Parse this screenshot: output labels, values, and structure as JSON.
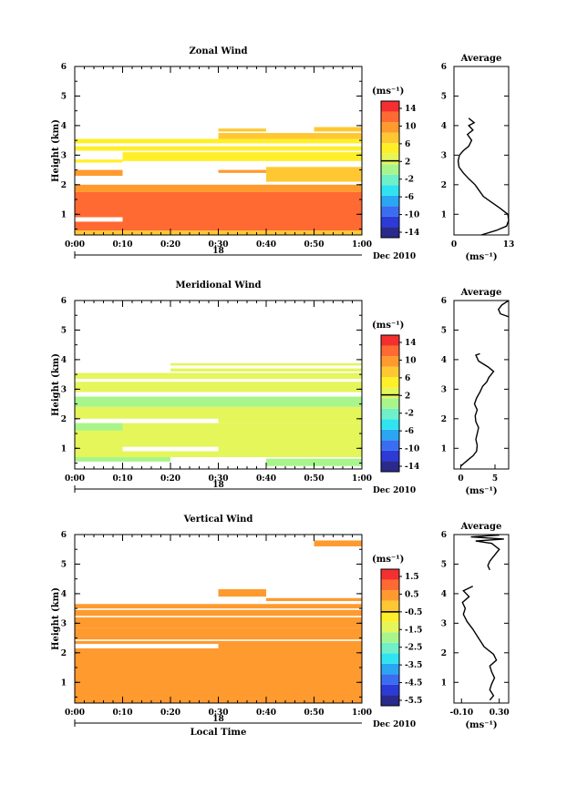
{
  "chart_data": [
    {
      "type": "heatmap",
      "title": "Zonal Wind",
      "xlabel": "",
      "ylabel": "Height (km)",
      "x_ticks": [
        "0:00",
        "0:10",
        "0:20",
        "0:30",
        "0:40",
        "0:50",
        "1:00"
      ],
      "y_ticks": [
        "1",
        "2",
        "3",
        "4",
        "5",
        "6"
      ],
      "ylim": [
        0.3,
        6.0
      ],
      "date_label": "18",
      "date_suffix": "Dec 2010",
      "colorbar": {
        "unit": "(ms⁻¹)",
        "ticks": [
          "14",
          "10",
          "6",
          "2",
          "-2",
          "-6",
          "-10",
          "-14"
        ],
        "range": [
          -16,
          16
        ],
        "marker": 2
      },
      "cells": [
        {
          "x0": 0,
          "x1": 60,
          "y0": 0.3,
          "y1": 0.45,
          "value": 8
        },
        {
          "x0": 0,
          "x1": 60,
          "y0": 0.45,
          "y1": 1.75,
          "value": 13
        },
        {
          "x0": 0,
          "x1": 10,
          "y0": 0.75,
          "y1": 0.9,
          "value": null
        },
        {
          "x0": 0,
          "x1": 60,
          "y0": 1.75,
          "y1": 2.0,
          "value": 9
        },
        {
          "x0": 0,
          "x1": 10,
          "y0": 2.3,
          "y1": 2.5,
          "value": 9
        },
        {
          "x0": 30,
          "x1": 40,
          "y0": 2.4,
          "y1": 2.5,
          "value": 11
        },
        {
          "x0": 40,
          "x1": 60,
          "y0": 2.1,
          "y1": 2.6,
          "value": 8
        },
        {
          "x0": 0,
          "x1": 10,
          "y0": 2.75,
          "y1": 2.85,
          "value": 6
        },
        {
          "x0": 10,
          "x1": 60,
          "y0": 2.8,
          "y1": 3.1,
          "value": 6
        },
        {
          "x0": 0,
          "x1": 60,
          "y0": 3.15,
          "y1": 3.3,
          "value": 5
        },
        {
          "x0": 0,
          "x1": 60,
          "y0": 3.4,
          "y1": 3.55,
          "value": 5
        },
        {
          "x0": 30,
          "x1": 60,
          "y0": 3.55,
          "y1": 3.75,
          "value": 7
        },
        {
          "x0": 30,
          "x1": 40,
          "y0": 3.8,
          "y1": 3.9,
          "value": 8
        },
        {
          "x0": 50,
          "x1": 60,
          "y0": 3.8,
          "y1": 3.95,
          "value": 8
        }
      ],
      "profile": {
        "title": "Average",
        "x_ticks": [
          "0",
          "13"
        ],
        "xlim": [
          0,
          13
        ],
        "xlabel": "(ms⁻¹)",
        "points": [
          [
            6.5,
            0.3
          ],
          [
            10,
            0.45
          ],
          [
            12.5,
            0.6
          ],
          [
            13,
            0.8
          ],
          [
            12.8,
            1.0
          ],
          [
            11,
            1.2
          ],
          [
            9,
            1.4
          ],
          [
            7,
            1.6
          ],
          [
            6,
            1.8
          ],
          [
            5,
            2.0
          ],
          [
            3.5,
            2.2
          ],
          [
            2.2,
            2.4
          ],
          [
            1.2,
            2.6
          ],
          [
            1,
            2.8
          ],
          [
            1.3,
            3.0
          ],
          [
            2.2,
            3.15
          ],
          [
            3.5,
            3.3
          ],
          [
            4.2,
            3.5
          ],
          [
            3.2,
            3.7
          ],
          [
            4.5,
            3.85
          ],
          [
            3.5,
            4.0
          ],
          [
            4.8,
            4.1
          ],
          [
            3.5,
            4.25
          ]
        ]
      }
    },
    {
      "type": "heatmap",
      "title": "Meridional Wind",
      "xlabel": "",
      "ylabel": "Height (km)",
      "x_ticks": [
        "0:00",
        "0:10",
        "0:20",
        "0:30",
        "0:40",
        "0:50",
        "1:00"
      ],
      "y_ticks": [
        "1",
        "2",
        "3",
        "4",
        "5",
        "6"
      ],
      "ylim": [
        0.3,
        6.0
      ],
      "date_label": "18",
      "date_suffix": "Dec 2010",
      "colorbar": {
        "unit": "(ms⁻¹)",
        "ticks": [
          "14",
          "10",
          "6",
          "2",
          "-2",
          "-6",
          "-10",
          "-14"
        ],
        "range": [
          -16,
          16
        ],
        "marker": 2
      },
      "cells": [
        {
          "x0": 0,
          "x1": 60,
          "y0": 0.7,
          "y1": 1.85,
          "value": 2
        },
        {
          "x0": 0,
          "x1": 10,
          "y0": 1.6,
          "y1": 1.85,
          "value": 1
        },
        {
          "x0": 10,
          "x1": 30,
          "y0": 0.9,
          "y1": 1.05,
          "value": null
        },
        {
          "x0": 0,
          "x1": 20,
          "y0": 0.55,
          "y1": 0.7,
          "value": 1
        },
        {
          "x0": 40,
          "x1": 60,
          "y0": 0.4,
          "y1": 0.65,
          "value": 0
        },
        {
          "x0": 30,
          "x1": 60,
          "y0": 1.85,
          "y1": 2.4,
          "value": 3
        },
        {
          "x0": 0,
          "x1": 30,
          "y0": 2.0,
          "y1": 2.4,
          "value": 2
        },
        {
          "x0": 0,
          "x1": 60,
          "y0": 2.4,
          "y1": 2.75,
          "value": 1
        },
        {
          "x0": 0,
          "x1": 60,
          "y0": 2.9,
          "y1": 3.25,
          "value": 2
        },
        {
          "x0": 0,
          "x1": 60,
          "y0": 3.35,
          "y1": 3.55,
          "value": 2
        },
        {
          "x0": 20,
          "x1": 60,
          "y0": 3.6,
          "y1": 3.7,
          "value": 3
        },
        {
          "x0": 20,
          "x1": 60,
          "y0": 3.8,
          "y1": 3.88,
          "value": 3
        }
      ],
      "profile": {
        "title": "Average",
        "x_ticks": [
          "0",
          "5"
        ],
        "xlim": [
          -1,
          7
        ],
        "xlabel": "(ms⁻¹)",
        "points": [
          [
            0,
            0.4
          ],
          [
            0.5,
            0.5
          ],
          [
            1,
            0.6
          ],
          [
            1.8,
            0.75
          ],
          [
            2.3,
            0.9
          ],
          [
            2.4,
            1.1
          ],
          [
            2.2,
            1.3
          ],
          [
            2.4,
            1.5
          ],
          [
            2.6,
            1.7
          ],
          [
            2.2,
            1.9
          ],
          [
            2.1,
            2.1
          ],
          [
            2.4,
            2.3
          ],
          [
            2,
            2.5
          ],
          [
            2.3,
            2.7
          ],
          [
            2.8,
            2.9
          ],
          [
            3.2,
            3.1
          ],
          [
            3.8,
            3.25
          ],
          [
            4.1,
            3.4
          ],
          [
            4.8,
            3.6
          ],
          [
            4,
            3.75
          ],
          [
            2.6,
            3.95
          ],
          [
            2.2,
            4.15
          ],
          [
            2.8,
            4.2
          ]
        ],
        "points_top": [
          [
            7,
            5.45
          ],
          [
            5.8,
            5.55
          ],
          [
            5.5,
            5.7
          ],
          [
            6,
            5.85
          ],
          [
            7,
            6.0
          ]
        ]
      }
    },
    {
      "type": "heatmap",
      "title": "Vertical Wind",
      "xlabel": "Local Time",
      "ylabel": "Height (km)",
      "x_ticks": [
        "0:00",
        "0:10",
        "0:20",
        "0:30",
        "0:40",
        "0:50",
        "1:00"
      ],
      "y_ticks": [
        "1",
        "2",
        "3",
        "4",
        "5",
        "6"
      ],
      "ylim": [
        0.3,
        6.0
      ],
      "date_label": "18",
      "date_suffix": "Dec 2010",
      "colorbar": {
        "unit": "(ms⁻¹)",
        "ticks": [
          "1.5",
          "0.5",
          "-0.5",
          "-1.5",
          "-2.5",
          "-3.5",
          "-4.5",
          "-5.5"
        ],
        "range": [
          -6.0,
          2.0
        ],
        "marker": -0.5
      },
      "cells": [
        {
          "x0": 0,
          "x1": 60,
          "y0": 0.3,
          "y1": 2.4,
          "value": 0.3
        },
        {
          "x0": 0,
          "x1": 30,
          "y0": 2.15,
          "y1": 2.3,
          "value": null
        },
        {
          "x0": 0,
          "x1": 60,
          "y0": 2.45,
          "y1": 2.85,
          "value": 0.3
        },
        {
          "x0": 0,
          "x1": 60,
          "y0": 2.85,
          "y1": 3.2,
          "value": 0.2
        },
        {
          "x0": 0,
          "x1": 60,
          "y0": 3.25,
          "y1": 3.45,
          "value": 0.5
        },
        {
          "x0": 0,
          "x1": 60,
          "y0": 3.5,
          "y1": 3.65,
          "value": 0.5
        },
        {
          "x0": 30,
          "x1": 40,
          "y0": 3.9,
          "y1": 4.15,
          "value": 0.7
        },
        {
          "x0": 40,
          "x1": 60,
          "y0": 3.75,
          "y1": 3.85,
          "value": 0.6
        },
        {
          "x0": 50,
          "x1": 60,
          "y0": 5.6,
          "y1": 5.8,
          "value": 0.2
        }
      ],
      "profile": {
        "title": "Average",
        "x_ticks": [
          "-0.10",
          "0.30"
        ],
        "xlim": [
          -0.18,
          0.4
        ],
        "xlabel": "(ms⁻¹)",
        "points": [
          [
            0.2,
            0.4
          ],
          [
            0.24,
            0.55
          ],
          [
            0.2,
            0.75
          ],
          [
            0.22,
            0.95
          ],
          [
            0.25,
            1.15
          ],
          [
            0.22,
            1.35
          ],
          [
            0.2,
            1.55
          ],
          [
            0.27,
            1.75
          ],
          [
            0.24,
            1.95
          ],
          [
            0.14,
            2.2
          ],
          [
            0.08,
            2.5
          ],
          [
            0.02,
            2.8
          ],
          [
            -0.04,
            3.05
          ],
          [
            -0.08,
            3.3
          ],
          [
            -0.06,
            3.5
          ],
          [
            -0.09,
            3.7
          ],
          [
            -0.02,
            3.9
          ],
          [
            -0.08,
            4.1
          ],
          [
            0.02,
            4.25
          ]
        ],
        "points_top": [
          [
            0.2,
            4.8
          ],
          [
            0.18,
            4.95
          ],
          [
            0.2,
            5.1
          ],
          [
            0.3,
            5.5
          ],
          [
            0.22,
            5.7
          ],
          [
            0.05,
            5.78
          ],
          [
            0.35,
            5.85
          ],
          [
            0.0,
            5.92
          ],
          [
            0.3,
            5.98
          ]
        ]
      }
    }
  ]
}
